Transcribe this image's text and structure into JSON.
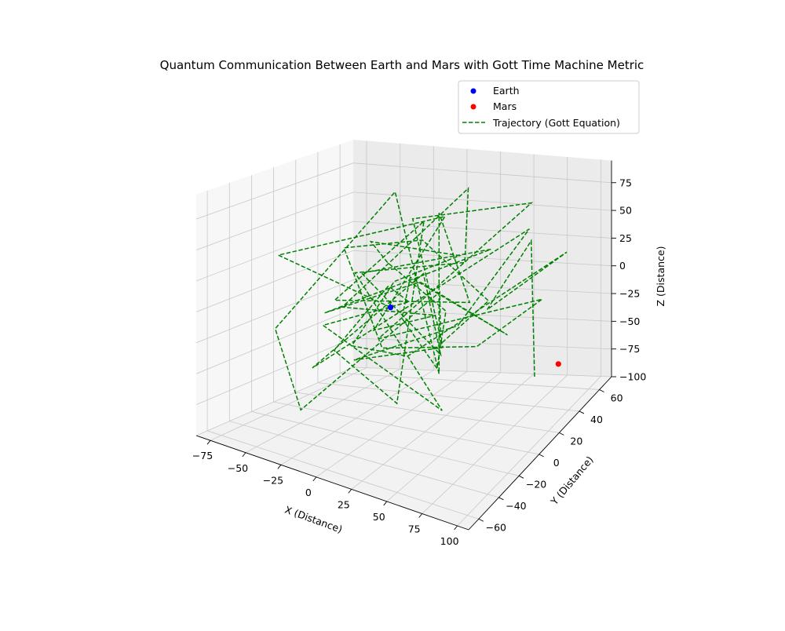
{
  "chart_data": {
    "type": "scatter3d-line",
    "title": "Quantum Communication Between Earth and Mars with Gott Time Machine Metric",
    "xlabel": "X (Distance)",
    "ylabel": "Y (Distance)",
    "zlabel": "Z (Distance)",
    "xlim": [
      -85,
      108
    ],
    "ylim": [
      -70,
      72
    ],
    "zlim": [
      -100,
      95
    ],
    "xticks": [
      -75,
      -50,
      -25,
      0,
      25,
      50,
      75,
      100
    ],
    "yticks": [
      -60,
      -40,
      -20,
      0,
      20,
      40,
      60
    ],
    "zticks": [
      -100,
      -75,
      -50,
      -25,
      0,
      25,
      50,
      75
    ],
    "grid": true,
    "legend_position": "top-right",
    "legend": [
      {
        "label": "Earth",
        "marker": "dot",
        "color": "#0000ff"
      },
      {
        "label": "Mars",
        "marker": "dot",
        "color": "#ff0000"
      },
      {
        "label": "Trajectory (Gott Equation)",
        "marker": "dashed-line",
        "color": "#008000"
      }
    ],
    "points": [
      {
        "name": "Earth",
        "x": 0,
        "y": 0,
        "z": 0,
        "color": "#0000ff"
      },
      {
        "name": "Mars",
        "x": 100,
        "y": 30,
        "z": -50,
        "color": "#ff0000"
      }
    ],
    "trajectory": {
      "name": "Trajectory (Gott Equation)",
      "color": "#008000",
      "points": [
        [
          0,
          0,
          0
        ],
        [
          -72,
          -12,
          30
        ],
        [
          15,
          32,
          62
        ],
        [
          -20,
          10,
          -30
        ],
        [
          48,
          -20,
          20
        ],
        [
          -55,
          25,
          -25
        ],
        [
          12,
          58,
          70
        ],
        [
          25,
          38,
          20
        ],
        [
          -18,
          -10,
          30
        ],
        [
          60,
          -30,
          -50
        ],
        [
          -65,
          20,
          -40
        ],
        [
          -10,
          30,
          -15
        ],
        [
          10,
          -15,
          30
        ],
        [
          -45,
          5,
          -50
        ],
        [
          35,
          -40,
          -45
        ],
        [
          5,
          25,
          60
        ],
        [
          -25,
          -20,
          10
        ],
        [
          50,
          10,
          10
        ],
        [
          -5,
          52,
          50
        ],
        [
          20,
          20,
          -65
        ],
        [
          -40,
          55,
          62
        ],
        [
          -60,
          -30,
          -20
        ],
        [
          -30,
          -45,
          -70
        ],
        [
          5,
          40,
          -10
        ],
        [
          25,
          15,
          -35
        ],
        [
          60,
          15,
          10
        ],
        [
          0,
          30,
          40
        ],
        [
          -30,
          -5,
          45
        ],
        [
          -10,
          5,
          -40
        ],
        [
          40,
          30,
          -45
        ],
        [
          88,
          30,
          5
        ],
        [
          -5,
          -5,
          -25
        ],
        [
          65,
          50,
          70
        ],
        [
          -15,
          40,
          50
        ],
        [
          15,
          30,
          -50
        ],
        [
          -15,
          -15,
          -40
        ],
        [
          30,
          25,
          -25
        ],
        [
          62,
          52,
          45
        ],
        [
          -45,
          -15,
          -55
        ],
        [
          30,
          -8,
          42
        ],
        [
          15,
          28,
          -55
        ],
        [
          -25,
          5,
          20
        ],
        [
          35,
          50,
          25
        ],
        [
          -40,
          -10,
          -10
        ],
        [
          10,
          15,
          15
        ],
        [
          55,
          40,
          -40
        ],
        [
          -5,
          25,
          10
        ],
        [
          -15,
          30,
          -30
        ],
        [
          30,
          5,
          -48
        ],
        [
          25,
          20,
          -10
        ],
        [
          -10,
          10,
          30
        ],
        [
          -30,
          20,
          38
        ],
        [
          35,
          20,
          40
        ],
        [
          -5,
          10,
          15
        ],
        [
          -40,
          15,
          -50
        ],
        [
          20,
          -10,
          -30
        ],
        [
          95,
          45,
          35
        ],
        [
          40,
          40,
          -20
        ],
        [
          80,
          30,
          55
        ],
        [
          75,
          40,
          -75
        ]
      ]
    }
  }
}
